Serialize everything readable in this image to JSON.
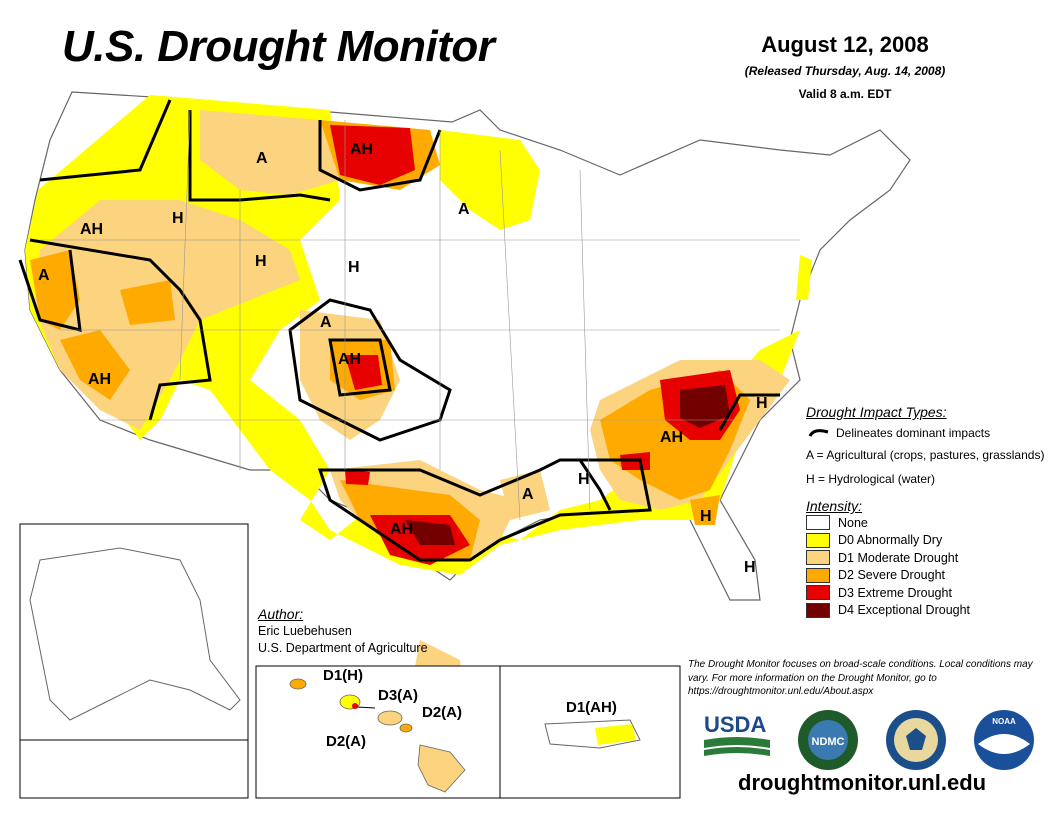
{
  "title": "U.S. Drought Monitor",
  "date": "August 12, 2008",
  "released": "(Released Thursday, Aug. 14, 2008)",
  "valid": "Valid 8 a.m. EDT",
  "map_labels": {
    "montana": "A",
    "north_dakota": "AH",
    "minnesota": "A",
    "oregon": "AH",
    "idaho": "H",
    "california_north": "A",
    "california_south": "AH",
    "wyoming": "H",
    "nebraska": "H",
    "colorado_west": "A",
    "colorado_south": "AH",
    "texas": "AH",
    "louisiana": "A",
    "mississippi": "H",
    "georgia": "AH",
    "north_carolina": "H",
    "georgia_south": "H",
    "florida": "H"
  },
  "impact_types": {
    "heading": "Drought Impact Types:",
    "delineates": "Delineates dominant impacts",
    "agricultural": "A = Agricultural (crops, pastures, grasslands)",
    "hydrological": "H = Hydrological (water)"
  },
  "intensity": {
    "heading": "Intensity:",
    "levels": [
      {
        "label": "None",
        "color": "#ffffff"
      },
      {
        "label": "D0 Abnormally Dry",
        "color": "#ffff00"
      },
      {
        "label": "D1 Moderate Drought",
        "color": "#fcd37f"
      },
      {
        "label": "D2 Severe Drought",
        "color": "#ffaa00"
      },
      {
        "label": "D3 Extreme Drought",
        "color": "#e60000"
      },
      {
        "label": "D4 Exceptional Drought",
        "color": "#730000"
      }
    ]
  },
  "author": {
    "heading": "Author:",
    "name": "Eric Luebehusen",
    "org": "U.S. Department of Agriculture"
  },
  "hawaii_labels": {
    "d1": "D1(H)",
    "d3": "D3(A)",
    "d2_east": "D2(A)",
    "d2_west": "D2(A)"
  },
  "puerto_rico_label": "D1(AH)",
  "disclaimer": "The Drought Monitor focuses on broad-scale conditions. Local conditions may vary. For more information on the Drought Monitor, go to https://droughtmonitor.unl.edu/About.aspx",
  "logos": {
    "usda": "USDA",
    "ndmc": "NDMC",
    "noaa": "NOAA"
  },
  "url": "droughtmonitor.unl.edu"
}
